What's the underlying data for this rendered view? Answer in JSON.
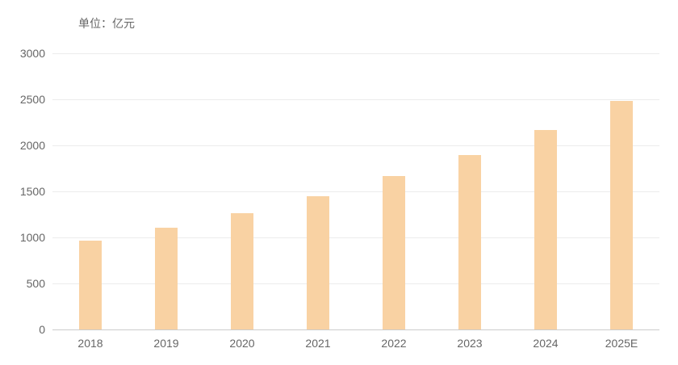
{
  "chart": {
    "unit_label": "单位：亿元"
  },
  "chart_data": {
    "type": "bar",
    "title": "",
    "unit": "亿元",
    "categories": [
      "2018",
      "2019",
      "2020",
      "2021",
      "2022",
      "2023",
      "2024",
      "2025E"
    ],
    "values": [
      965,
      1105,
      1265,
      1445,
      1665,
      1895,
      2165,
      2480
    ],
    "xlabel": "",
    "ylabel": "单位：亿元",
    "ylim": [
      0,
      3000
    ],
    "ytick_step": 500,
    "ytick_labels": [
      "0",
      "500",
      "1000",
      "1500",
      "2000",
      "2500",
      "3000"
    ],
    "grid": true,
    "legend_position": "none",
    "bar_color": "#F9D2A3",
    "gridline_color": "#ececec",
    "axis_line_color": "#cccccc",
    "label_color": "#666666"
  }
}
